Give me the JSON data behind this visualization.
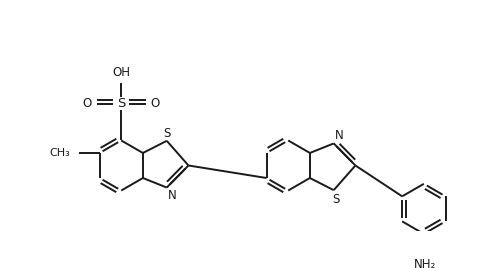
{
  "bg_color": "#ffffff",
  "line_color": "#1a1a1a",
  "line_width": 1.4,
  "font_size": 8.5,
  "figure_width": 4.94,
  "figure_height": 2.68,
  "dpi": 100,
  "xlim": [
    0.0,
    9.8
  ],
  "ylim": [
    -1.5,
    3.8
  ]
}
